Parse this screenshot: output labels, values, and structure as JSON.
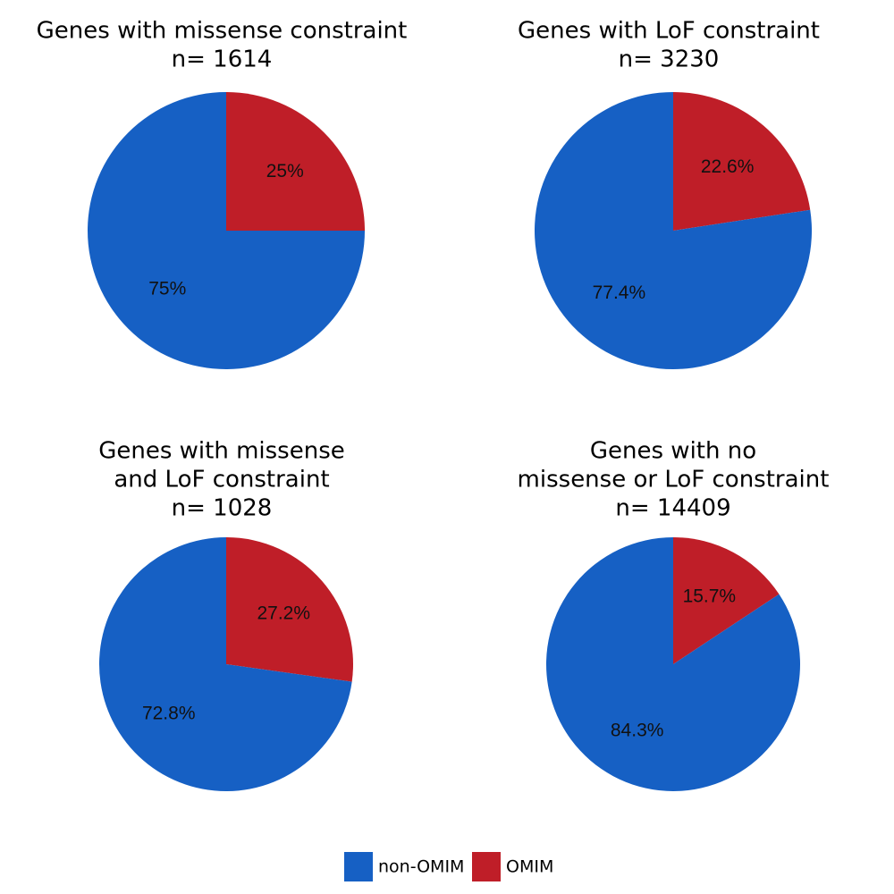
{
  "chart_data": [
    {
      "type": "pie",
      "title": [
        "Genes with missense constraint",
        "n= 1614"
      ],
      "categories": [
        "OMIM",
        "non-OMIM"
      ],
      "values": [
        25,
        75
      ],
      "labels": [
        "25%",
        "75%"
      ]
    },
    {
      "type": "pie",
      "title": [
        "Genes with LoF constraint",
        "n= 3230"
      ],
      "categories": [
        "OMIM",
        "non-OMIM"
      ],
      "values": [
        22.6,
        77.4
      ],
      "labels": [
        "22.6%",
        "77.4%"
      ]
    },
    {
      "type": "pie",
      "title": [
        "Genes with missense",
        "and LoF constraint",
        "n= 1028"
      ],
      "categories": [
        "OMIM",
        "non-OMIM"
      ],
      "values": [
        27.2,
        72.8
      ],
      "labels": [
        "27.2%",
        "72.8%"
      ]
    },
    {
      "type": "pie",
      "title": [
        "Genes with no",
        "missense or LoF constraint",
        "n= 14409"
      ],
      "categories": [
        "OMIM",
        "non-OMIM"
      ],
      "values": [
        15.7,
        84.3
      ],
      "labels": [
        "15.7%",
        "84.3%"
      ]
    }
  ],
  "legend": [
    {
      "label": "non-OMIM",
      "color": "#1660c4"
    },
    {
      "label": "OMIM",
      "color": "#bf1e28"
    }
  ],
  "colors": {
    "non_omim": "#1660c4",
    "omim": "#bf1e28"
  }
}
